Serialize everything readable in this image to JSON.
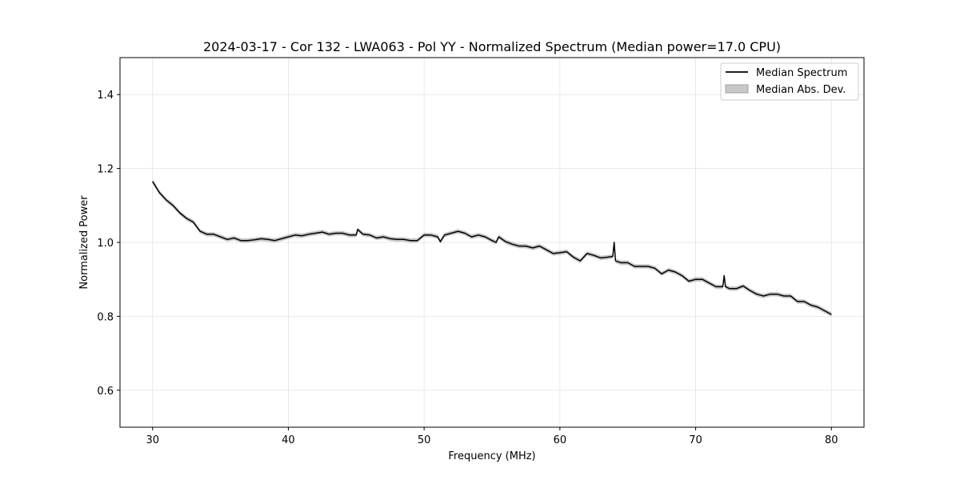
{
  "chart_data": {
    "type": "line",
    "title": "2024-03-17 - Cor 132 - LWA063 - Pol YY - Normalized Spectrum (Median power=17.0 CPU)",
    "xlabel": "Frequency (MHz)",
    "ylabel": "Normalized Power",
    "xlim": [
      27.6,
      82.4
    ],
    "ylim": [
      0.5,
      1.5
    ],
    "xticks": [
      30,
      40,
      50,
      60,
      70,
      80
    ],
    "yticks": [
      0.6,
      0.8,
      1.0,
      1.2,
      1.4
    ],
    "xtick_labels": [
      "30",
      "40",
      "50",
      "60",
      "70",
      "80"
    ],
    "ytick_labels": [
      "0.6",
      "0.8",
      "1.0",
      "1.2",
      "1.4"
    ],
    "grid": true,
    "legend": {
      "position": "top-right",
      "entries": [
        "Median Spectrum",
        "Median Abs. Dev."
      ]
    },
    "series": [
      {
        "name": "Median Spectrum",
        "color": "#000000",
        "x": [
          30.0,
          30.5,
          31.0,
          31.5,
          32.0,
          32.5,
          33.0,
          33.5,
          34.0,
          34.5,
          35.0,
          35.5,
          36.0,
          36.5,
          37.0,
          37.5,
          38.0,
          38.5,
          39.0,
          39.5,
          40.0,
          40.5,
          41.0,
          41.5,
          42.0,
          42.5,
          43.0,
          43.5,
          44.0,
          44.5,
          45.0,
          45.1,
          45.5,
          46.0,
          46.5,
          47.0,
          47.5,
          48.0,
          48.5,
          49.0,
          49.5,
          50.0,
          50.5,
          51.0,
          51.2,
          51.5,
          52.0,
          52.5,
          53.0,
          53.5,
          54.0,
          54.5,
          55.0,
          55.3,
          55.5,
          56.0,
          56.5,
          57.0,
          57.5,
          58.0,
          58.5,
          59.0,
          59.5,
          60.0,
          60.5,
          61.0,
          61.5,
          62.0,
          62.5,
          63.0,
          63.5,
          63.9,
          64.0,
          64.1,
          64.5,
          65.0,
          65.5,
          66.0,
          66.5,
          67.0,
          67.5,
          68.0,
          68.5,
          69.0,
          69.5,
          70.0,
          70.5,
          71.0,
          71.5,
          72.0,
          72.1,
          72.2,
          72.5,
          73.0,
          73.5,
          74.0,
          74.5,
          75.0,
          75.5,
          76.0,
          76.5,
          77.0,
          77.5,
          78.0,
          78.5,
          79.0,
          79.5,
          80.0
        ],
        "values": [
          1.165,
          1.135,
          1.115,
          1.1,
          1.08,
          1.065,
          1.055,
          1.03,
          1.022,
          1.022,
          1.015,
          1.008,
          1.012,
          1.005,
          1.005,
          1.007,
          1.01,
          1.008,
          1.005,
          1.01,
          1.015,
          1.02,
          1.018,
          1.022,
          1.025,
          1.028,
          1.022,
          1.025,
          1.025,
          1.02,
          1.02,
          1.035,
          1.022,
          1.02,
          1.012,
          1.015,
          1.01,
          1.008,
          1.008,
          1.005,
          1.005,
          1.02,
          1.02,
          1.015,
          1.002,
          1.02,
          1.025,
          1.03,
          1.025,
          1.015,
          1.02,
          1.015,
          1.005,
          1.0,
          1.015,
          1.002,
          0.995,
          0.99,
          0.99,
          0.985,
          0.99,
          0.98,
          0.97,
          0.972,
          0.975,
          0.96,
          0.95,
          0.97,
          0.965,
          0.958,
          0.96,
          0.962,
          1.0,
          0.95,
          0.945,
          0.945,
          0.935,
          0.935,
          0.935,
          0.93,
          0.915,
          0.925,
          0.92,
          0.91,
          0.895,
          0.9,
          0.9,
          0.89,
          0.88,
          0.88,
          0.91,
          0.88,
          0.875,
          0.875,
          0.882,
          0.87,
          0.86,
          0.855,
          0.86,
          0.86,
          0.855,
          0.855,
          0.84,
          0.84,
          0.83,
          0.825,
          0.815,
          0.805
        ]
      },
      {
        "name": "Median Abs. Dev.",
        "color": "#999999",
        "type": "band",
        "half_width": 0.006
      }
    ]
  }
}
